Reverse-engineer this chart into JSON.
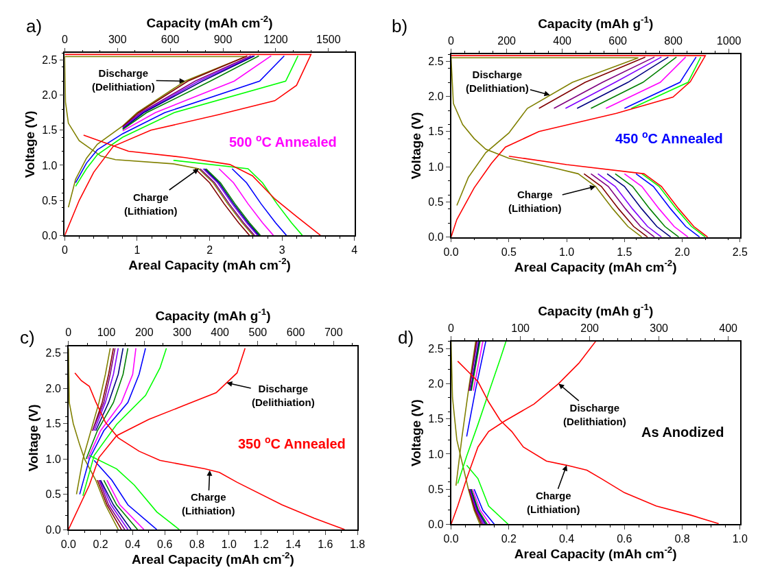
{
  "chart_data": [
    {
      "type": "line",
      "xlabel": "Areal Capacity (mAh cm$^{-2}$)",
      "x2label": "Capacity (mAh cm$^{-2}$)",
      "ylabel": "Voltage (V)",
      "xlim": [
        0,
        4
      ],
      "xticks": [
        0,
        1,
        2,
        3,
        4
      ],
      "x2lim": [
        0,
        1648
      ],
      "x2ticks": [
        0,
        300,
        600,
        900,
        1200,
        1500
      ],
      "ylim": [
        0,
        2.6
      ],
      "yticks": [
        {
          "value": 0,
          "label": "0.0"
        },
        {
          "value": 0.5,
          "label": "0.5"
        },
        {
          "value": 1,
          "label": "1.0"
        },
        {
          "value": 1.5,
          "label": "1.5"
        },
        {
          "value": 2,
          "label": "2.0"
        },
        {
          "value": 2.5,
          "label": "2.5"
        }
      ],
      "annotations": [
        "a)",
        {
          "text": "Discharge\n(Delithiation)",
          "x": 1.66,
          "y": 2.2
        },
        {
          "text": "Charge\n(Lithiation)",
          "x": 1.85,
          "y": 0.95
        },
        "500 $^{o}$C Annealed"
      ],
      "series": [
        {
          "color": "#808000",
          "x": [
            0.05,
            0.15,
            0.3,
            0.45,
            0.8,
            1.0,
            1.66,
            2.5,
            0
          ],
          "values": [
            0.4,
            0.8,
            1.1,
            1.3,
            1.56,
            1.75,
            2.2,
            2.55,
            2.55
          ]
        },
        {
          "color": "#808000",
          "x": [
            0,
            0.01,
            0.05,
            0.2,
            0.5,
            0.7,
            1.5,
            1.85,
            2.05,
            2.25,
            2.45,
            2.6
          ],
          "values": [
            2.55,
            1.9,
            1.6,
            1.35,
            1.13,
            1.08,
            1.02,
            0.95,
            0.75,
            0.45,
            0.18,
            0
          ]
        },
        {
          "color": "#800000",
          "x": [
            0.8,
            1.02,
            1.7,
            2.52
          ],
          "values": [
            1.55,
            1.75,
            2.2,
            2.56
          ]
        },
        {
          "color": "#800000",
          "x": [
            1.8,
            2.0,
            2.2,
            2.4,
            2.55
          ],
          "values": [
            0.95,
            0.75,
            0.45,
            0.18,
            0
          ]
        },
        {
          "color": "#800080",
          "x": [
            0.8,
            1.05,
            1.8,
            2.57
          ],
          "values": [
            1.54,
            1.75,
            2.2,
            2.56
          ]
        },
        {
          "color": "#800080",
          "x": [
            1.87,
            2.07,
            2.27,
            2.47,
            2.62
          ],
          "values": [
            0.95,
            0.75,
            0.45,
            0.18,
            0
          ]
        },
        {
          "color": "#8000ff",
          "x": [
            0.8,
            1.07,
            1.85,
            2.6
          ],
          "values": [
            1.53,
            1.75,
            2.2,
            2.56
          ]
        },
        {
          "color": "#8000ff",
          "x": [
            1.91,
            2.11,
            2.31,
            2.51,
            2.66
          ],
          "values": [
            0.95,
            0.75,
            0.45,
            0.18,
            0
          ]
        },
        {
          "color": "#000080",
          "x": [
            0.8,
            1.09,
            1.9,
            2.62
          ],
          "values": [
            1.52,
            1.75,
            2.2,
            2.56
          ]
        },
        {
          "color": "#000080",
          "x": [
            1.93,
            2.13,
            2.33,
            2.53,
            2.68
          ],
          "values": [
            0.95,
            0.75,
            0.45,
            0.18,
            0
          ]
        },
        {
          "color": "#008000",
          "x": [
            0.8,
            1.13,
            2.01,
            2.68
          ],
          "values": [
            1.51,
            1.75,
            2.2,
            2.56
          ]
        },
        {
          "color": "#008000",
          "x": [
            1.95,
            2.15,
            2.35,
            2.55,
            2.7
          ],
          "values": [
            0.95,
            0.75,
            0.45,
            0.18,
            0
          ]
        },
        {
          "color": "#ff00ff",
          "x": [
            0.8,
            1.25,
            2.34,
            2.85
          ],
          "values": [
            1.49,
            1.75,
            2.2,
            2.56
          ]
        },
        {
          "color": "#ff00ff",
          "x": [
            2.13,
            2.33,
            2.53,
            2.73,
            2.88
          ],
          "values": [
            0.95,
            0.75,
            0.45,
            0.18,
            0
          ]
        },
        {
          "color": "#0000ff",
          "x": [
            0.15,
            0.3,
            0.45,
            0.8,
            1.38,
            2.69,
            3.03
          ],
          "values": [
            0.75,
            1.03,
            1.22,
            1.45,
            1.75,
            2.2,
            2.56
          ]
        },
        {
          "color": "#0000ff",
          "x": [
            2.31,
            2.51,
            2.71,
            2.91,
            3.06
          ],
          "values": [
            0.95,
            0.75,
            0.45,
            0.18,
            0
          ]
        },
        {
          "color": "#00ff00",
          "x": [
            0.15,
            0.3,
            0.45,
            0.8,
            1.51,
            3.05,
            3.22
          ],
          "values": [
            0.7,
            0.95,
            1.15,
            1.4,
            1.75,
            2.2,
            2.56
          ]
        },
        {
          "color": "#00ff00",
          "x": [
            1.5,
            2.53,
            2.73,
            2.93,
            3.13,
            3.28
          ],
          "values": [
            1.07,
            0.95,
            0.75,
            0.45,
            0.18,
            0
          ]
        },
        {
          "color": "#ff0000",
          "x": [
            0,
            0.2,
            0.4,
            0.67,
            1.19,
            2.12,
            2.9,
            3.2,
            3.4,
            0
          ],
          "values": [
            0,
            0.5,
            0.9,
            1.27,
            1.5,
            1.72,
            1.92,
            2.14,
            2.58,
            2.58
          ]
        },
        {
          "color": "#ff0000",
          "x": [
            0.26,
            0.88,
            1.66,
            2.28,
            2.59,
            2.9,
            3.2,
            3.53
          ],
          "values": [
            1.43,
            1.2,
            1.11,
            1.01,
            0.85,
            0.52,
            0.27,
            0
          ]
        }
      ]
    },
    {
      "type": "line",
      "xlabel": "Areal Capacity (mAh cm$^{-2}$)",
      "x2label": "Capacity (mAh g$^{-1}$)",
      "ylabel": "Voltage (V)",
      "xlim": [
        0,
        2.5
      ],
      "xticks": [
        {
          "value": 0,
          "label": "0.0"
        },
        {
          "value": 0.5,
          "label": "0.5"
        },
        {
          "value": 1,
          "label": "1.0"
        },
        {
          "value": 1.5,
          "label": "1.5"
        },
        {
          "value": 2,
          "label": "2.0"
        },
        {
          "value": 2.5,
          "label": "2.5"
        }
      ],
      "x2lim": [
        0,
        1040
      ],
      "x2ticks": [
        0,
        200,
        400,
        600,
        800,
        1000
      ],
      "ylim": [
        0,
        2.6
      ],
      "yticks": [
        {
          "value": 0,
          "label": "0.0"
        },
        {
          "value": 0.5,
          "label": "0.5"
        },
        {
          "value": 1,
          "label": "1.0"
        },
        {
          "value": 1.5,
          "label": "1.5"
        },
        {
          "value": 2,
          "label": "2.0"
        },
        {
          "value": 2.5,
          "label": "2.5"
        }
      ],
      "annotations": [
        "b)",
        {
          "text": "Discharge\n(Delithiation)",
          "x": 0.855,
          "y": 2.02
        },
        {
          "text": "Charge\n(Lithiation)",
          "x": 1.25,
          "y": 0.72
        },
        "450 $^{o}$C Annealed"
      ],
      "series": [
        {
          "color": "#808000",
          "x": [
            0.05,
            0.15,
            0.3,
            0.5,
            0.66,
            1.05,
            1.62,
            0
          ],
          "values": [
            0.45,
            0.85,
            1.2,
            1.48,
            1.83,
            2.2,
            2.55,
            2.55
          ]
        },
        {
          "color": "#808000",
          "x": [
            0,
            0.02,
            0.1,
            0.2,
            0.3,
            0.5,
            0.9,
            1.1,
            1.25,
            1.4,
            1.53,
            1.65
          ],
          "values": [
            2.55,
            1.9,
            1.6,
            1.4,
            1.25,
            1.12,
            0.98,
            0.9,
            0.72,
            0.4,
            0.15,
            0
          ]
        },
        {
          "color": "#800000",
          "x": [
            0.76,
            1.16,
            1.68
          ],
          "values": [
            1.83,
            2.2,
            2.56
          ]
        },
        {
          "color": "#800000",
          "x": [
            1.15,
            1.3,
            1.45,
            1.58,
            1.7
          ],
          "values": [
            0.9,
            0.72,
            0.4,
            0.15,
            0
          ]
        },
        {
          "color": "#800080",
          "x": [
            0.89,
            1.31,
            1.76
          ],
          "values": [
            1.83,
            2.2,
            2.56
          ]
        },
        {
          "color": "#800080",
          "x": [
            1.21,
            1.36,
            1.51,
            1.64,
            1.76
          ],
          "values": [
            0.9,
            0.72,
            0.4,
            0.15,
            0
          ]
        },
        {
          "color": "#8000ff",
          "x": [
            0.99,
            1.42,
            1.82
          ],
          "values": [
            1.83,
            2.2,
            2.56
          ]
        },
        {
          "color": "#8000ff",
          "x": [
            1.27,
            1.42,
            1.57,
            1.7,
            1.82
          ],
          "values": [
            0.9,
            0.72,
            0.4,
            0.15,
            0
          ]
        },
        {
          "color": "#000080",
          "x": [
            1.09,
            1.53,
            1.88
          ],
          "values": [
            1.83,
            2.2,
            2.56
          ]
        },
        {
          "color": "#000080",
          "x": [
            1.35,
            1.5,
            1.65,
            1.78,
            1.9
          ],
          "values": [
            0.9,
            0.72,
            0.4,
            0.15,
            0
          ]
        },
        {
          "color": "#008000",
          "x": [
            1.21,
            1.66,
            1.95
          ],
          "values": [
            1.83,
            2.2,
            2.56
          ]
        },
        {
          "color": "#008000",
          "x": [
            1.42,
            1.57,
            1.72,
            1.85,
            1.97
          ],
          "values": [
            0.9,
            0.72,
            0.4,
            0.15,
            0
          ]
        },
        {
          "color": "#ff00ff",
          "x": [
            1.34,
            1.81,
            2.03
          ],
          "values": [
            1.83,
            2.2,
            2.56
          ]
        },
        {
          "color": "#ff00ff",
          "x": [
            1.5,
            1.65,
            1.8,
            1.93,
            2.05
          ],
          "values": [
            0.9,
            0.72,
            0.4,
            0.15,
            0
          ]
        },
        {
          "color": "#0000ff",
          "x": [
            1.5,
            1.98,
            2.12
          ],
          "values": [
            1.83,
            2.2,
            2.56
          ]
        },
        {
          "color": "#0000ff",
          "x": [
            1.6,
            1.75,
            1.9,
            2.03,
            2.15
          ],
          "values": [
            0.9,
            0.72,
            0.4,
            0.15,
            0
          ]
        },
        {
          "color": "#00ff00",
          "x": [
            1.56,
            2.05,
            2.16
          ],
          "values": [
            1.83,
            2.2,
            2.56
          ]
        },
        {
          "color": "#00ff00",
          "x": [
            1.65,
            1.8,
            1.95,
            2.08,
            2.2
          ],
          "values": [
            0.9,
            0.72,
            0.4,
            0.15,
            0
          ]
        },
        {
          "color": "#ff0000",
          "x": [
            0,
            0.05,
            0.2,
            0.35,
            0.47,
            0.76,
            1.43,
            1.92,
            2.07,
            2.2,
            0
          ],
          "values": [
            0,
            0.25,
            0.7,
            1.05,
            1.28,
            1.5,
            1.76,
            1.99,
            2.21,
            2.58,
            2.58
          ]
        },
        {
          "color": "#ff0000",
          "x": [
            0.5,
            1.0,
            1.67,
            1.82,
            1.97,
            2.1,
            2.22
          ],
          "values": [
            1.15,
            1.03,
            0.9,
            0.72,
            0.4,
            0.15,
            0
          ]
        }
      ]
    },
    {
      "type": "line",
      "xlabel": "Areal Capacity (mAh cm$^{-2}$)",
      "x2label": "Capacity (mAh g$^{-1}$)",
      "ylabel": "Voltage (V)",
      "xlim": [
        0,
        1.8
      ],
      "xticks": [
        {
          "value": 0,
          "label": "0.0"
        },
        {
          "value": 0.2,
          "label": "0.2"
        },
        {
          "value": 0.4,
          "label": "0.4"
        },
        {
          "value": 0.6,
          "label": "0.6"
        },
        {
          "value": 0.8,
          "label": "0.8"
        },
        {
          "value": 1,
          "label": "1.0"
        },
        {
          "value": 1.2,
          "label": "1.2"
        },
        {
          "value": 1.4,
          "label": "1.4"
        },
        {
          "value": 1.6,
          "label": "1.6"
        },
        {
          "value": 1.8,
          "label": "1.8"
        }
      ],
      "x2lim": [
        0,
        763
      ],
      "x2ticks": [
        0,
        100,
        200,
        300,
        400,
        500,
        600,
        700
      ],
      "ylim": [
        0,
        2.6
      ],
      "yticks": [
        {
          "value": 0,
          "label": "0.0"
        },
        {
          "value": 0.5,
          "label": "0.5"
        },
        {
          "value": 1,
          "label": "1.0"
        },
        {
          "value": 1.5,
          "label": "1.5"
        },
        {
          "value": 2,
          "label": "2.0"
        },
        {
          "value": 2.5,
          "label": "2.5"
        }
      ],
      "annotations": [
        "c)",
        {
          "text": "Discharge\n(Delithiation)",
          "x": 0.985,
          "y": 2.08
        },
        {
          "text": "Charge\n(Lithiation)",
          "x": 0.88,
          "y": 0.84
        },
        "350 $^{o}$C Annealed"
      ],
      "series": [
        {
          "color": "#808000",
          "x": [
            0.05,
            0.09,
            0.14,
            0.19,
            0.23,
            0.26
          ],
          "values": [
            0.5,
            1.0,
            1.4,
            1.8,
            2.2,
            2.57
          ]
        },
        {
          "color": "#808000",
          "x": [
            0,
            0.005,
            0.03,
            0.07,
            0.1,
            0.17,
            0.23,
            0.31
          ],
          "values": [
            2.57,
            1.8,
            1.5,
            1.2,
            1.0,
            0.7,
            0.35,
            0
          ]
        },
        {
          "color": "#800000",
          "x": [
            0.15,
            0.21,
            0.25,
            0.28
          ],
          "values": [
            1.4,
            1.8,
            2.2,
            2.57
          ]
        },
        {
          "color": "#800000",
          "x": [
            0.18,
            0.24,
            0.33
          ],
          "values": [
            0.7,
            0.35,
            0
          ]
        },
        {
          "color": "#800080",
          "x": [
            0.15,
            0.22,
            0.26,
            0.29
          ],
          "values": [
            1.4,
            1.8,
            2.2,
            2.57
          ]
        },
        {
          "color": "#800080",
          "x": [
            0.19,
            0.25,
            0.35
          ],
          "values": [
            0.7,
            0.35,
            0
          ]
        },
        {
          "color": "#8000ff",
          "x": [
            0.16,
            0.23,
            0.28,
            0.31
          ],
          "values": [
            1.4,
            1.8,
            2.2,
            2.57
          ]
        },
        {
          "color": "#8000ff",
          "x": [
            0.195,
            0.265,
            0.37
          ],
          "values": [
            0.7,
            0.35,
            0
          ]
        },
        {
          "color": "#000080",
          "x": [
            0.17,
            0.25,
            0.31,
            0.34
          ],
          "values": [
            1.4,
            1.8,
            2.2,
            2.57
          ]
        },
        {
          "color": "#000080",
          "x": [
            0.2,
            0.28,
            0.39
          ],
          "values": [
            0.7,
            0.35,
            0
          ]
        },
        {
          "color": "#008000",
          "x": [
            0.11,
            0.18,
            0.28,
            0.34,
            0.37
          ],
          "values": [
            1.0,
            1.4,
            1.8,
            2.2,
            2.57
          ]
        },
        {
          "color": "#008000",
          "x": [
            0.22,
            0.3,
            0.43
          ],
          "values": [
            0.7,
            0.35,
            0
          ]
        },
        {
          "color": "#ff00ff",
          "x": [
            0.12,
            0.2,
            0.33,
            0.4,
            0.42
          ],
          "values": [
            1.0,
            1.4,
            1.8,
            2.2,
            2.57
          ]
        },
        {
          "color": "#ff00ff",
          "x": [
            0.24,
            0.32,
            0.47
          ],
          "values": [
            0.7,
            0.35,
            0
          ]
        },
        {
          "color": "#0000ff",
          "x": [
            0.07,
            0.13,
            0.22,
            0.37,
            0.44,
            0.48
          ],
          "values": [
            0.5,
            1.0,
            1.4,
            1.8,
            2.2,
            2.57
          ]
        },
        {
          "color": "#0000ff",
          "x": [
            0.16,
            0.27,
            0.37,
            0.55
          ],
          "values": [
            0.98,
            0.7,
            0.35,
            0
          ]
        },
        {
          "color": "#00ff00",
          "x": [
            0.09,
            0.16,
            0.3,
            0.48,
            0.57,
            0.61
          ],
          "values": [
            0.48,
            1.05,
            1.49,
            1.9,
            2.29,
            2.57
          ]
        },
        {
          "color": "#00ff00",
          "x": [
            0.13,
            0.3,
            0.41,
            0.55,
            0.69
          ],
          "values": [
            1.05,
            0.86,
            0.63,
            0.25,
            0
          ]
        },
        {
          "color": "#ff0000",
          "x": [
            0,
            0.13,
            0.19,
            0.3,
            0.5,
            0.71,
            0.92,
            1.05,
            1.1
          ],
          "values": [
            0,
            0.63,
            1.02,
            1.33,
            1.56,
            1.75,
            1.94,
            2.22,
            2.57
          ]
        },
        {
          "color": "#ff0000",
          "x": [
            0.04,
            0.08,
            0.13,
            0.17,
            0.23,
            0.31,
            0.44,
            0.57,
            0.85,
            0.94,
            1.05,
            1.33,
            1.53,
            1.72
          ],
          "values": [
            2.22,
            2.11,
            2.03,
            1.81,
            1.52,
            1.3,
            1.11,
            0.98,
            0.86,
            0.81,
            0.67,
            0.35,
            0.16,
            0
          ]
        }
      ]
    },
    {
      "type": "line",
      "xlabel": "Areal Capacity (mAh cm$^{-2}$)",
      "x2label": "Capacity (mAh g$^{-1}$)",
      "ylabel": "Voltage (V)",
      "xlim": [
        0,
        1
      ],
      "xticks": [
        {
          "value": 0,
          "label": "0.0"
        },
        {
          "value": 0.2,
          "label": "0.2"
        },
        {
          "value": 0.4,
          "label": "0.4"
        },
        {
          "value": 0.6,
          "label": "0.6"
        },
        {
          "value": 0.8,
          "label": "0.8"
        },
        {
          "value": 1,
          "label": "1.0"
        }
      ],
      "x2lim": [
        0,
        417
      ],
      "x2ticks": [
        0,
        100,
        200,
        300,
        400
      ],
      "ylim": [
        0,
        2.6
      ],
      "yticks": [
        {
          "value": 0,
          "label": "0.0"
        },
        {
          "value": 0.5,
          "label": "0.5"
        },
        {
          "value": 1,
          "label": "1.0"
        },
        {
          "value": 1.5,
          "label": "1.5"
        },
        {
          "value": 2,
          "label": "2.0"
        },
        {
          "value": 2.5,
          "label": "2.5"
        }
      ],
      "annotations": [
        "d)",
        {
          "text": "Discharge\n(Delithiation)",
          "x": 0.372,
          "y": 2.0
        },
        {
          "text": "Charge\n(Lithiation)",
          "x": 0.4,
          "y": 0.84
        },
        "As Anodized"
      ],
      "series": [
        {
          "color": "#808000",
          "x": [
            0.017,
            0.038,
            0.06,
            0.085
          ],
          "values": [
            0.55,
            1.25,
            1.9,
            2.6
          ]
        },
        {
          "color": "#808000",
          "x": [
            0,
            0.005,
            0.02,
            0.04,
            0.06,
            0.08,
            0.1
          ],
          "values": [
            2.6,
            1.8,
            1.2,
            0.85,
            0.5,
            0.2,
            0
          ]
        },
        {
          "color": "#800000",
          "x": [
            0.062,
            0.088
          ],
          "values": [
            1.9,
            2.6
          ]
        },
        {
          "color": "#800000",
          "x": [
            0.062,
            0.083,
            0.105
          ],
          "values": [
            0.5,
            0.2,
            0
          ]
        },
        {
          "color": "#800080",
          "x": [
            0.063,
            0.09
          ],
          "values": [
            1.9,
            2.6
          ]
        },
        {
          "color": "#800080",
          "x": [
            0.064,
            0.086,
            0.11
          ],
          "values": [
            0.5,
            0.2,
            0
          ]
        },
        {
          "color": "#8000ff",
          "x": [
            0.067,
            0.095
          ],
          "values": [
            1.9,
            2.6
          ]
        },
        {
          "color": "#8000ff",
          "x": [
            0.066,
            0.089,
            0.115
          ],
          "values": [
            0.5,
            0.2,
            0
          ]
        },
        {
          "color": "#000080",
          "x": [
            0.068,
            0.097
          ],
          "values": [
            1.9,
            2.6
          ]
        },
        {
          "color": "#000080",
          "x": [
            0.068,
            0.092,
            0.12
          ],
          "values": [
            0.5,
            0.2,
            0
          ]
        },
        {
          "color": "#008000",
          "x": [
            0.07,
            0.1
          ],
          "values": [
            1.9,
            2.6
          ]
        },
        {
          "color": "#008000",
          "x": [
            0.07,
            0.095,
            0.125
          ],
          "values": [
            0.5,
            0.2,
            0
          ]
        },
        {
          "color": "#ff00ff",
          "x": [
            0.077,
            0.11
          ],
          "values": [
            1.9,
            2.6
          ]
        },
        {
          "color": "#ff00ff",
          "x": [
            0.074,
            0.101,
            0.135
          ],
          "values": [
            0.5,
            0.2,
            0
          ]
        },
        {
          "color": "#0000ff",
          "x": [
            0.054,
            0.084,
            0.12
          ],
          "values": [
            1.25,
            1.9,
            2.6
          ]
        },
        {
          "color": "#0000ff",
          "x": [
            0.08,
            0.11,
            0.15
          ],
          "values": [
            0.5,
            0.2,
            0
          ]
        },
        {
          "color": "#00ff00",
          "x": [
            0.023,
            0.054,
            0.093,
            0.13,
            0.17,
            0.19
          ],
          "values": [
            0.58,
            0.97,
            1.42,
            1.87,
            2.35,
            2.6
          ]
        },
        {
          "color": "#00ff00",
          "x": [
            0.054,
            0.093,
            0.13,
            0.198
          ],
          "values": [
            0.84,
            0.65,
            0.26,
            0
          ]
        },
        {
          "color": "#ff0000",
          "x": [
            0,
            0.023,
            0.054,
            0.093,
            0.13,
            0.186,
            0.287,
            0.372,
            0.442,
            0.5
          ],
          "values": [
            0,
            0.26,
            0.65,
            1.1,
            1.32,
            1.47,
            1.71,
            2.0,
            2.29,
            2.6
          ]
        },
        {
          "color": "#ff0000",
          "x": [
            0.023,
            0.062,
            0.093,
            0.13,
            0.17,
            0.21,
            0.25,
            0.33,
            0.4,
            0.47,
            0.52,
            0.6,
            0.71,
            0.83,
            0.926
          ],
          "values": [
            2.32,
            2.16,
            2.03,
            1.74,
            1.48,
            1.32,
            1.1,
            0.9,
            0.84,
            0.77,
            0.65,
            0.45,
            0.26,
            0.13,
            0.01
          ]
        }
      ]
    }
  ]
}
